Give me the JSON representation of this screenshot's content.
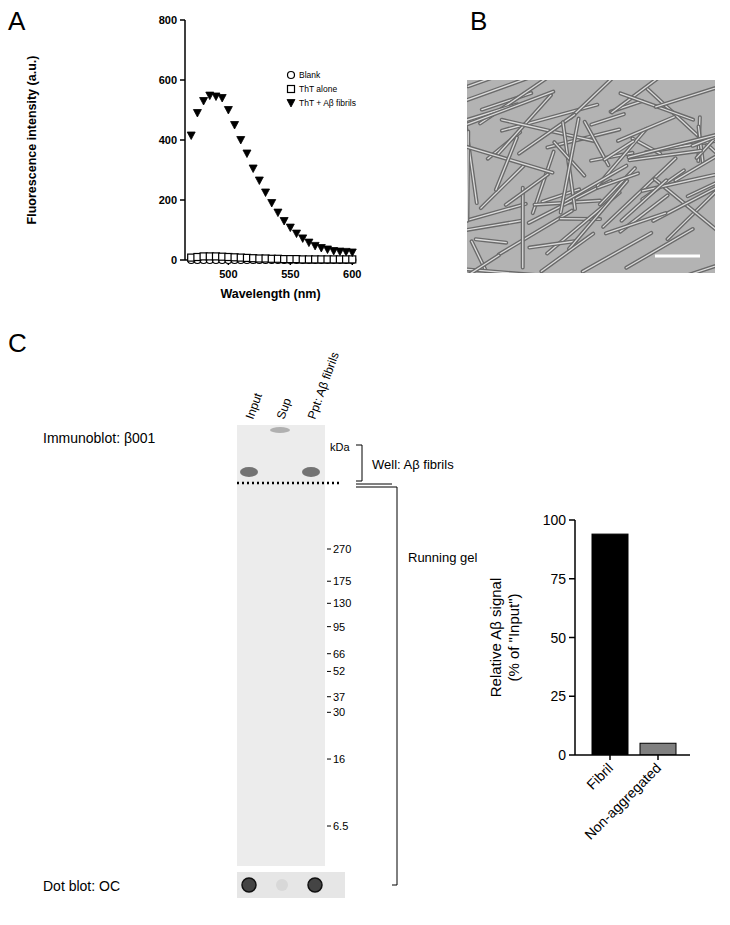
{
  "panel_letters": [
    "A",
    "B",
    "C"
  ],
  "chart_data": [
    {
      "type": "scatter",
      "xlabel": "Wavelength (nm)",
      "ylabel": "Fluorescence intensity (a.u.)",
      "xlim": [
        465,
        603
      ],
      "xticks": [
        500,
        550,
        600
      ],
      "ylim": [
        0,
        800
      ],
      "yticks": [
        0,
        200,
        400,
        600,
        800
      ],
      "legend": "upper right",
      "x": [
        470,
        475,
        480,
        485,
        490,
        495,
        500,
        505,
        510,
        515,
        520,
        525,
        530,
        535,
        540,
        545,
        550,
        555,
        560,
        565,
        570,
        575,
        580,
        585,
        590,
        595,
        600
      ],
      "series": [
        {
          "name": "Blank",
          "marker": "circle",
          "color": "#000000",
          "values": [
            0,
            0,
            0,
            0,
            0,
            0,
            0,
            0,
            0,
            0,
            0,
            0,
            0,
            0,
            0,
            0,
            0,
            0,
            0,
            0,
            0,
            0,
            0,
            0,
            0,
            0,
            0
          ]
        },
        {
          "name": "ThT alone",
          "marker": "square",
          "color": "#000000",
          "values": [
            8,
            10,
            12,
            12,
            12,
            11,
            10,
            9,
            8,
            7,
            6,
            5,
            5,
            4,
            4,
            3,
            3,
            3,
            2,
            2,
            2,
            2,
            2,
            2,
            2,
            2,
            2
          ]
        },
        {
          "name": "ThT + Aβ fibrils",
          "marker": "triangle-down",
          "color": "#000000",
          "values": [
            415,
            490,
            530,
            548,
            545,
            540,
            500,
            450,
            400,
            355,
            305,
            265,
            225,
            190,
            158,
            130,
            108,
            88,
            72,
            58,
            47,
            40,
            35,
            30,
            28,
            27,
            25
          ]
        }
      ]
    },
    {
      "type": "bar",
      "ylabel": "Relative Aβ signal (% of \"Input\")",
      "categories": [
        "Fibril",
        "Non-aggregated"
      ],
      "values": [
        94,
        5
      ],
      "colors": [
        "#000000",
        "#808080"
      ],
      "ylim": [
        0,
        100
      ],
      "yticks": [
        0,
        25,
        50,
        75,
        100
      ]
    }
  ],
  "blot": {
    "title": "Immunoblot: β001",
    "lanes": [
      "Input",
      "Sup",
      "Ppt: Aβ fibrils"
    ],
    "marker_unit": "kDa",
    "markers": [
      270,
      175,
      130,
      95,
      66,
      52,
      37,
      30,
      16,
      6.5
    ],
    "well_label": "Well: Aβ fibrils",
    "gel_label": "Running gel",
    "dot_blot_title": "Dot blot: OC"
  }
}
